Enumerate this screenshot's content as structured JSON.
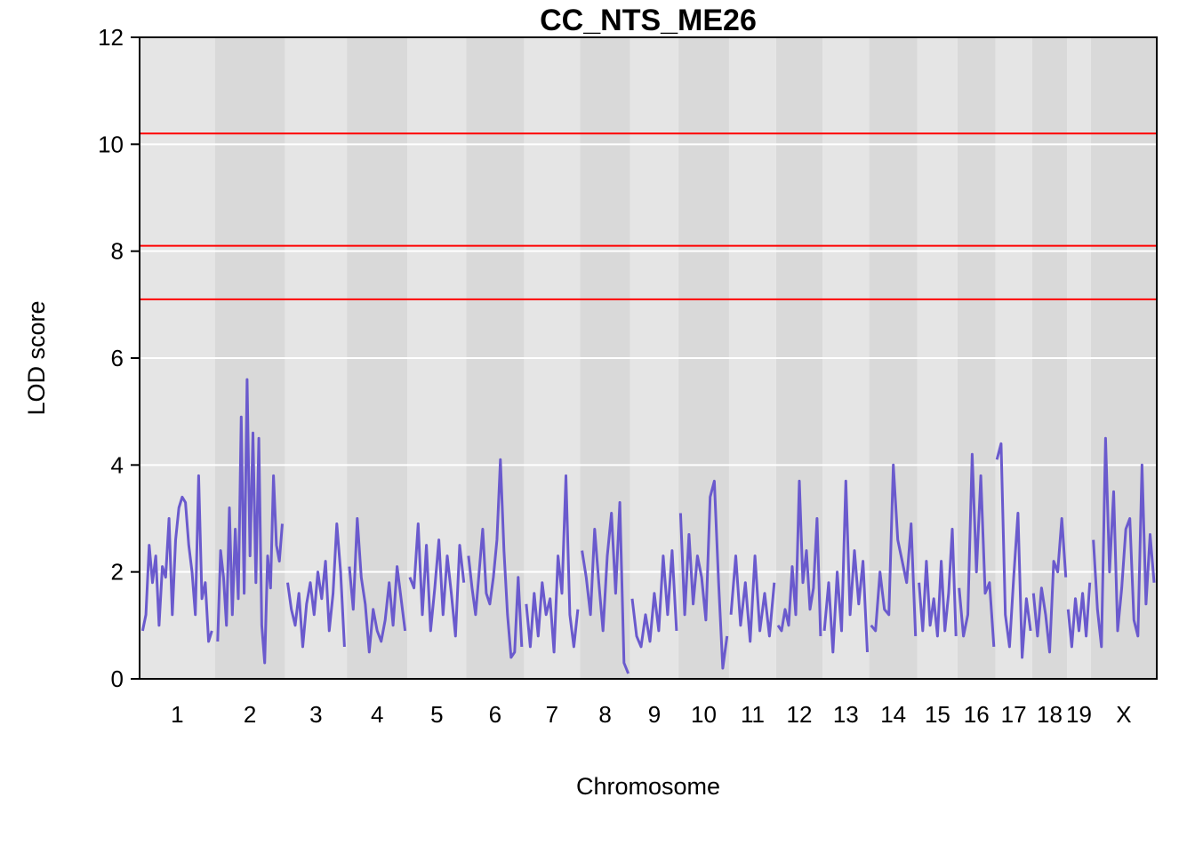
{
  "chart_data": {
    "type": "line",
    "title": "CC_NTS_ME26",
    "xlabel": "Chromosome",
    "ylabel": "LOD score",
    "ylim": [
      0,
      12
    ],
    "yticks": [
      "0",
      "2",
      "4",
      "6",
      "8",
      "10",
      "12"
    ],
    "grid": true,
    "line_color": "#6a5acd",
    "threshold_color": "#ff0000",
    "thresholds": [
      7.1,
      8.1,
      10.2
    ],
    "band_colors": [
      "#e5e5e5",
      "#d9d9d9"
    ],
    "chromosomes": [
      {
        "label": "1",
        "length": 195
      },
      {
        "label": "2",
        "length": 182
      },
      {
        "label": "3",
        "length": 160
      },
      {
        "label": "4",
        "length": 157
      },
      {
        "label": "5",
        "length": 152
      },
      {
        "label": "6",
        "length": 150
      },
      {
        "label": "7",
        "length": 145
      },
      {
        "label": "8",
        "length": 130
      },
      {
        "label": "9",
        "length": 125
      },
      {
        "label": "10",
        "length": 131
      },
      {
        "label": "11",
        "length": 122
      },
      {
        "label": "12",
        "length": 120
      },
      {
        "label": "13",
        "length": 121
      },
      {
        "label": "14",
        "length": 125
      },
      {
        "label": "15",
        "length": 104
      },
      {
        "label": "16",
        "length": 98
      },
      {
        "label": "17",
        "length": 95
      },
      {
        "label": "18",
        "length": 91
      },
      {
        "label": "19",
        "length": 61
      },
      {
        "label": "X",
        "length": 171
      }
    ],
    "series": [
      {
        "lod": [
          [
            0.9,
            1.2,
            2.5,
            1.8,
            2.3,
            1.0,
            2.1,
            1.9,
            3.0,
            1.2,
            2.6,
            3.2,
            3.4,
            3.3,
            2.5,
            2.0,
            1.2,
            3.8,
            1.5,
            1.8,
            0.7,
            0.9
          ],
          [
            0.7,
            2.4,
            1.9,
            1.0,
            3.2,
            1.2,
            2.8,
            1.5,
            4.9,
            1.6,
            5.6,
            2.3,
            4.6,
            1.8,
            4.5,
            1.0,
            0.3,
            2.3,
            1.7,
            3.8,
            2.5,
            2.2,
            2.9
          ],
          [
            1.8,
            1.3,
            1.0,
            1.6,
            0.6,
            1.4,
            1.8,
            1.2,
            2.0,
            1.5,
            2.2,
            0.9,
            1.6,
            2.9,
            2.0,
            0.6
          ],
          [
            2.1,
            1.3,
            3.0,
            1.9,
            1.4,
            0.5,
            1.3,
            0.9,
            0.7,
            1.1,
            1.8,
            1.0,
            2.1,
            1.5,
            0.9
          ],
          [
            1.9,
            1.7,
            2.9,
            1.2,
            2.5,
            0.9,
            1.7,
            2.6,
            1.2,
            2.3,
            1.6,
            0.8,
            2.5,
            1.8
          ],
          [
            2.3,
            1.7,
            1.2,
            2.0,
            2.8,
            1.6,
            1.4,
            1.9,
            2.6,
            4.1,
            2.4,
            1.2,
            0.4,
            0.5,
            1.9,
            0.6
          ],
          [
            1.4,
            0.6,
            1.6,
            0.8,
            1.8,
            1.2,
            1.5,
            0.5,
            2.3,
            1.6,
            3.8,
            1.2,
            0.6,
            1.3
          ],
          [
            2.4,
            1.9,
            1.2,
            2.8,
            1.8,
            0.9,
            2.3,
            3.1,
            1.6,
            3.3,
            0.3,
            0.1
          ],
          [
            1.5,
            0.8,
            0.6,
            1.2,
            0.7,
            1.6,
            0.9,
            2.3,
            1.2,
            2.4,
            0.9
          ],
          [
            3.1,
            1.2,
            2.7,
            1.4,
            2.3,
            1.9,
            1.1,
            3.4,
            3.7,
            1.8,
            0.2,
            0.8
          ],
          [
            1.2,
            2.3,
            1.0,
            1.8,
            0.7,
            2.3,
            0.9,
            1.6,
            0.8,
            1.8
          ],
          [
            1.0,
            0.9,
            1.3,
            1.0,
            2.1,
            1.2,
            3.7,
            1.8,
            2.4,
            1.3,
            1.7,
            3.0,
            0.8
          ],
          [
            0.9,
            1.8,
            0.5,
            2.0,
            0.9,
            3.7,
            1.2,
            2.4,
            1.4,
            2.2,
            0.5
          ],
          [
            1.0,
            0.9,
            2.0,
            1.3,
            1.2,
            4.0,
            2.6,
            2.2,
            1.8,
            2.9,
            0.8
          ],
          [
            1.8,
            0.9,
            2.2,
            1.0,
            1.5,
            0.8,
            2.2,
            0.9,
            1.6,
            2.8,
            0.8
          ],
          [
            1.7,
            0.8,
            1.2,
            4.2,
            2.0,
            3.8,
            1.6,
            1.8,
            0.6
          ],
          [
            4.1,
            4.4,
            1.2,
            0.6,
            1.9,
            3.1,
            0.4,
            1.5,
            0.9
          ],
          [
            1.6,
            0.8,
            1.7,
            1.2,
            0.5,
            2.2,
            2.0,
            3.0,
            1.9
          ],
          [
            1.3,
            0.6,
            1.5,
            0.9,
            1.6,
            0.8,
            1.8
          ],
          [
            2.6,
            1.3,
            0.6,
            4.5,
            2.0,
            3.5,
            0.9,
            1.7,
            2.8,
            3.0,
            1.1,
            0.8,
            4.0,
            1.4,
            2.7,
            1.8
          ]
        ]
      }
    ]
  }
}
